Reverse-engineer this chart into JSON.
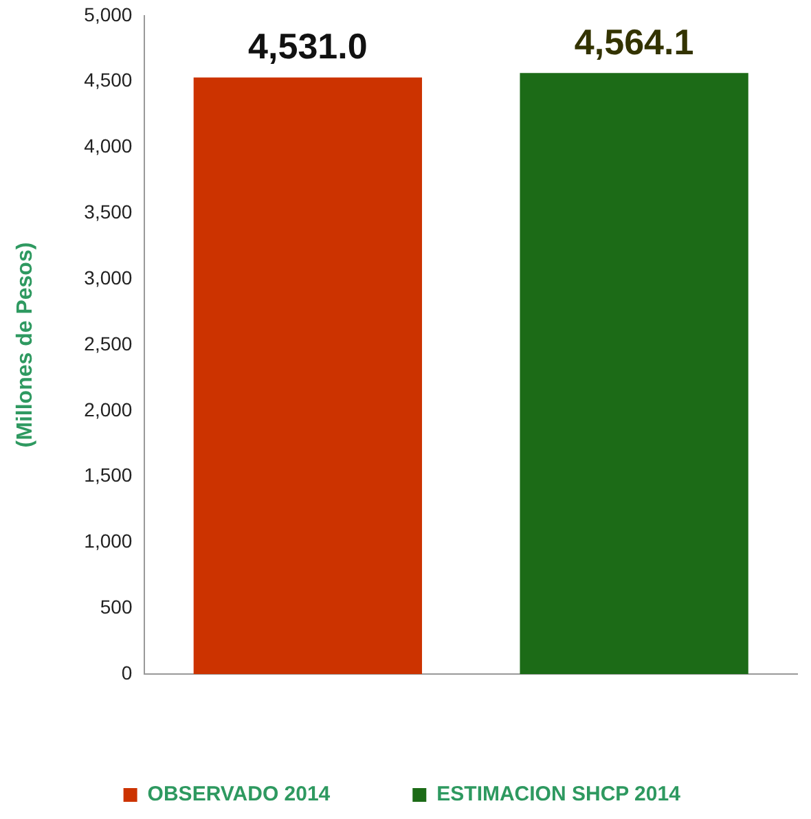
{
  "chart_data": {
    "type": "bar",
    "ylabel": "(Millones de Pesos)",
    "categories": [
      null,
      null
    ],
    "series": [
      {
        "name": "OBSERVADO 2014",
        "color": "#cc3300",
        "values": [
          4531.0,
          null
        ],
        "value_labels": [
          "4,531.0",
          null
        ]
      },
      {
        "name": "ESTIMACION SHCP 2014",
        "color": "#1c6b17",
        "values": [
          null,
          4564.1
        ],
        "value_labels": [
          null,
          "4,564.1"
        ]
      }
    ],
    "ylim": [
      0,
      5000
    ],
    "yticks": [
      {
        "value": 0,
        "label": "0"
      },
      {
        "value": 500,
        "label": "500"
      },
      {
        "value": 1000,
        "label": "1,000"
      },
      {
        "value": 1500,
        "label": "1,500"
      },
      {
        "value": 2000,
        "label": "2,000"
      },
      {
        "value": 2500,
        "label": "2,500"
      },
      {
        "value": 3000,
        "label": "3,000"
      },
      {
        "value": 3500,
        "label": "3,500"
      },
      {
        "value": 4000,
        "label": "4,000"
      },
      {
        "value": 4500,
        "label": "4,500"
      },
      {
        "value": 5000,
        "label": "5,000"
      }
    ],
    "grid": false,
    "legend": "bottom"
  }
}
